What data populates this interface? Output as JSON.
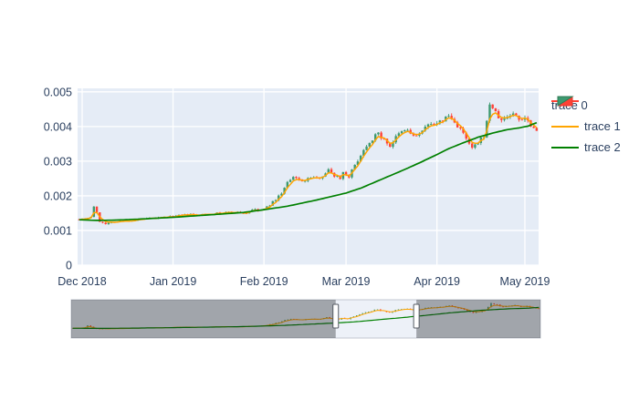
{
  "figure": {
    "background": "#ffffff",
    "plot_bg": "#e5ecf6",
    "grid_color": "#ffffff",
    "text_color": "#2a3f5f",
    "rangeslider_bg": "#edf1f8",
    "rangeslider_mask": "rgba(20,22,28,0.35)",
    "handle_fill": "#ffffff",
    "handle_border": "#555a63"
  },
  "chart_data": {
    "type": "candlestick",
    "title": "",
    "xlabel": "",
    "ylabel": "",
    "x_range_days": [
      -1,
      155
    ],
    "y_range": [
      0,
      0.0051
    ],
    "grid": true,
    "legend_position": "right-top",
    "x_ticks": [
      {
        "label": "Dec 2018",
        "day": 0
      },
      {
        "label": "Jan 2019",
        "day": 31
      },
      {
        "label": "Feb 2019",
        "day": 62
      },
      {
        "label": "Mar 2019",
        "day": 90
      },
      {
        "label": "Apr 2019",
        "day": 121
      },
      {
        "label": "May 2019",
        "day": 151
      }
    ],
    "y_ticks": [
      {
        "label": "0",
        "value": 0
      },
      {
        "label": "0.001",
        "value": 0.001
      },
      {
        "label": "0.002",
        "value": 0.002
      },
      {
        "label": "0.003",
        "value": 0.003
      },
      {
        "label": "0.004",
        "value": 0.004
      },
      {
        "label": "0.005",
        "value": 0.005
      }
    ],
    "series": [
      {
        "name": "trace 0",
        "type": "candlestick",
        "increasing_color": "#3D9970",
        "decreasing_color": "#FF4136",
        "close_anchors": [
          [
            -1,
            0.00133
          ],
          [
            1,
            0.00135
          ],
          [
            3,
            0.00139
          ],
          [
            4,
            0.0017
          ],
          [
            5,
            0.0015
          ],
          [
            6,
            0.00126
          ],
          [
            8,
            0.0012
          ],
          [
            11,
            0.00125
          ],
          [
            14,
            0.00127
          ],
          [
            17,
            0.00129
          ],
          [
            20,
            0.00132
          ],
          [
            23,
            0.00134
          ],
          [
            26,
            0.00136
          ],
          [
            29,
            0.00139
          ],
          [
            31,
            0.0014
          ],
          [
            34,
            0.00144
          ],
          [
            37,
            0.00146
          ],
          [
            39,
            0.00143
          ],
          [
            42,
            0.00147
          ],
          [
            45,
            0.00149
          ],
          [
            48,
            0.00151
          ],
          [
            51,
            0.00153
          ],
          [
            54,
            0.00151
          ],
          [
            56,
            0.0015
          ],
          [
            58,
            0.00161
          ],
          [
            60,
            0.00157
          ],
          [
            62,
            0.00161
          ],
          [
            64,
            0.00174
          ],
          [
            66,
            0.0019
          ],
          [
            68,
            0.00208
          ],
          [
            70,
            0.00238
          ],
          [
            72,
            0.00252
          ],
          [
            74,
            0.00247
          ],
          [
            76,
            0.00243
          ],
          [
            78,
            0.00254
          ],
          [
            80,
            0.0025
          ],
          [
            82,
            0.00259
          ],
          [
            84,
            0.00274
          ],
          [
            86,
            0.00259
          ],
          [
            88,
            0.00252
          ],
          [
            89,
            0.00268
          ],
          [
            91,
            0.00257
          ],
          [
            93,
            0.00288
          ],
          [
            95,
            0.00318
          ],
          [
            97,
            0.00346
          ],
          [
            99,
            0.00365
          ],
          [
            101,
            0.0038
          ],
          [
            103,
            0.00361
          ],
          [
            105,
            0.00344
          ],
          [
            107,
            0.00368
          ],
          [
            109,
            0.00384
          ],
          [
            111,
            0.0039
          ],
          [
            113,
            0.00371
          ],
          [
            115,
            0.00379
          ],
          [
            117,
            0.00394
          ],
          [
            119,
            0.00413
          ],
          [
            121,
            0.00404
          ],
          [
            123,
            0.00419
          ],
          [
            125,
            0.00431
          ],
          [
            127,
            0.00411
          ],
          [
            129,
            0.00394
          ],
          [
            131,
            0.00362
          ],
          [
            133,
            0.00337
          ],
          [
            135,
            0.00351
          ],
          [
            137,
            0.00374
          ],
          [
            138,
            0.00412
          ],
          [
            139,
            0.00466
          ],
          [
            140,
            0.00455
          ],
          [
            141,
            0.00438
          ],
          [
            143,
            0.00416
          ],
          [
            145,
            0.00429
          ],
          [
            147,
            0.00437
          ],
          [
            149,
            0.00421
          ],
          [
            151,
            0.00427
          ],
          [
            153,
            0.00406
          ],
          [
            155,
            0.00388
          ]
        ]
      },
      {
        "name": "trace 1",
        "type": "line",
        "color": "#ffa500",
        "note": "short moving average of close"
      },
      {
        "name": "trace 2",
        "type": "line",
        "color": "#008000",
        "anchors": [
          [
            -1,
            0.00131
          ],
          [
            5,
            0.00129
          ],
          [
            12,
            0.0013
          ],
          [
            20,
            0.00133
          ],
          [
            31,
            0.00138
          ],
          [
            45,
            0.00146
          ],
          [
            55,
            0.00152
          ],
          [
            62,
            0.0016
          ],
          [
            70,
            0.0017
          ],
          [
            80,
            0.00188
          ],
          [
            90,
            0.00208
          ],
          [
            95,
            0.00222
          ],
          [
            100,
            0.0024
          ],
          [
            105,
            0.00258
          ],
          [
            110,
            0.00276
          ],
          [
            115,
            0.00295
          ],
          [
            120,
            0.00315
          ],
          [
            125,
            0.00336
          ],
          [
            130,
            0.00353
          ],
          [
            135,
            0.00369
          ],
          [
            140,
            0.00381
          ],
          [
            145,
            0.00391
          ],
          [
            149,
            0.00396
          ],
          [
            152,
            0.00401
          ],
          [
            155,
            0.00411
          ]
        ]
      }
    ],
    "rangeslider": {
      "visible": true,
      "selected_day_range": [
        87,
        114
      ]
    }
  }
}
